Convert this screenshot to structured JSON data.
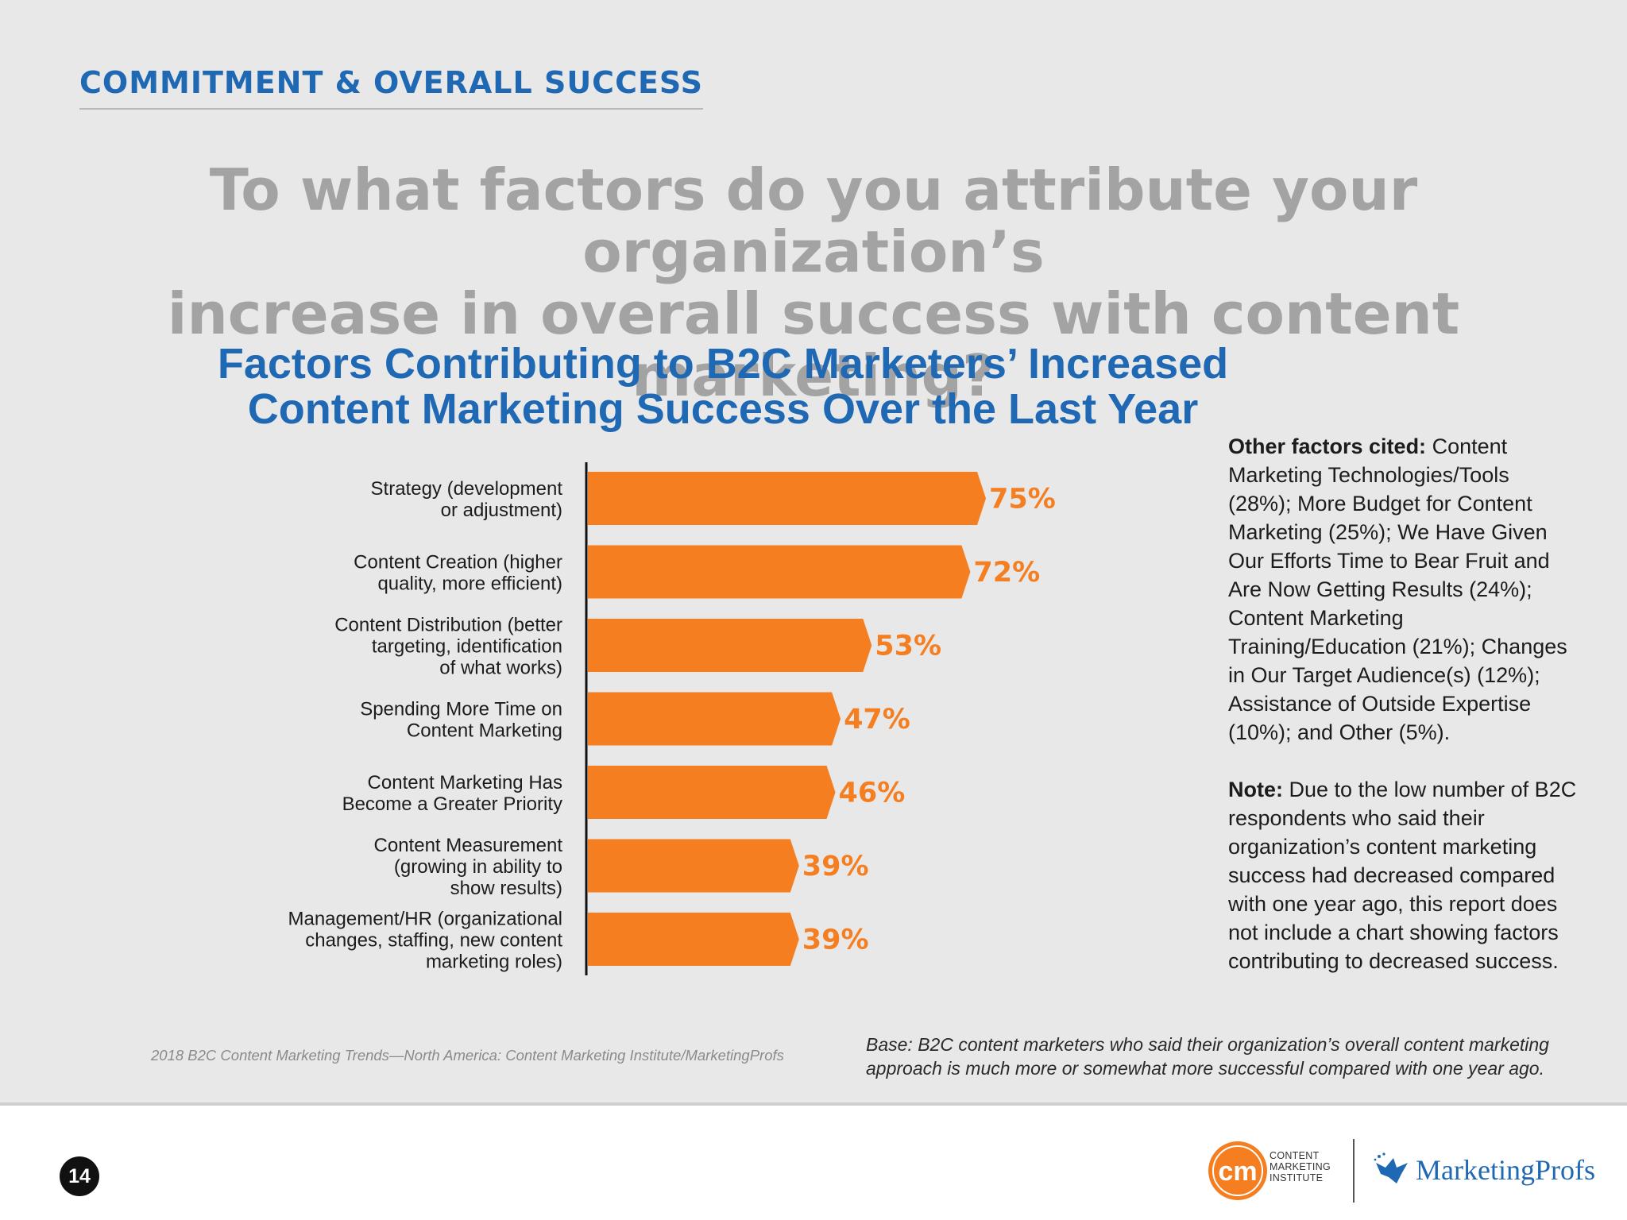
{
  "section_title": "COMMITMENT & OVERALL SUCCESS",
  "question": {
    "line1": "To what factors do you attribute your organization’s",
    "line2": "increase in overall success with content marketing?"
  },
  "colors": {
    "blue": "#1f68b3",
    "bar": "#f47e20",
    "question_gray": "#a3a3a3"
  },
  "chart_data": {
    "type": "bar",
    "orientation": "horizontal",
    "title_line1": "Factors Contributing to B2C Marketers’ Increased",
    "title_line2": "Content Marketing Success Over the Last Year",
    "categories": [
      [
        "Strategy (development",
        "or adjustment)"
      ],
      [
        "Content Creation (higher",
        "quality, more efficient)"
      ],
      [
        "Content Distribution (better",
        "targeting, identification",
        "of what works)"
      ],
      [
        "Spending More Time on",
        "Content Marketing"
      ],
      [
        "Content Marketing Has",
        "Become a Greater Priority"
      ],
      [
        "Content Measurement",
        "(growing in ability to",
        "show results)"
      ],
      [
        "Management/HR (organizational",
        "changes, staffing, new content",
        "marketing roles)"
      ]
    ],
    "values": [
      75,
      72,
      53,
      47,
      46,
      39,
      39
    ],
    "value_labels": [
      "75%",
      "72%",
      "53%",
      "47%",
      "46%",
      "39%",
      "39%"
    ],
    "xlim": [
      0,
      100
    ]
  },
  "side_notes": {
    "other_label": "Other factors cited:",
    "other_text": "Content Marketing Technologies/Tools (28%); More Budget for Content Marketing (25%); We Have Given Our Efforts Time to Bear Fruit and Are Now Getting Results (24%); Content Marketing Training/Education (21%); Changes in Our Target Audience(s) (12%); Assistance of Outside Expertise (10%); and Other (5%).",
    "note_label": "Note:",
    "note_text": "Due to the low number of B2C respondents who said their organization’s content marketing success had decreased compared with one year ago, this report does not include a chart showing factors contributing to decreased success."
  },
  "source": "2018 B2C Content Marketing Trends—North America: Content Marketing Institute/MarketingProfs",
  "base": "Base: B2C content marketers who said their organization’s overall content marketing approach is much more or somewhat more successful compared with one year ago.",
  "footer": {
    "page_number": "14",
    "cmi_mark": "cm",
    "cmi_line1": "CONTENT",
    "cmi_line2": "MARKETING",
    "cmi_line3": "INSTITUTE",
    "mp_brand": "MarketingProfs"
  }
}
